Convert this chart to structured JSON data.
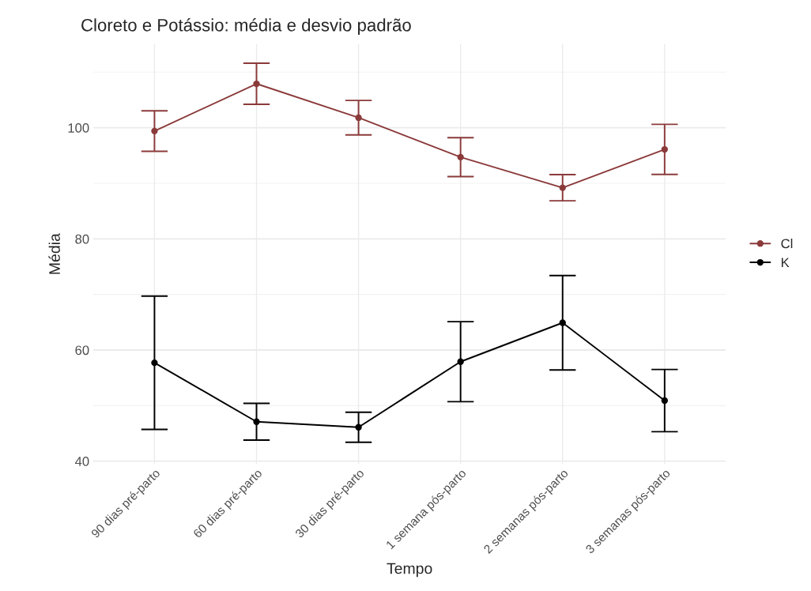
{
  "chart_data": {
    "type": "line",
    "title": "Cloreto e Potássio: média e desvio padrão",
    "xlabel": "Tempo",
    "ylabel": "Média",
    "categories": [
      "90 dias pré-parto",
      "60 dias pré-parto",
      "30 dias pré-parto",
      "1 semana pós-parto",
      "2 semanas pós-parto",
      "3 semanas pós-parto"
    ],
    "series": [
      {
        "name": "Cl",
        "color": "#8b3a3a",
        "values": [
          99.4,
          107.9,
          101.8,
          94.7,
          89.2,
          96.1
        ],
        "errors": [
          3.65,
          3.7,
          3.1,
          3.5,
          2.35,
          4.5
        ]
      },
      {
        "name": "K",
        "color": "#000000",
        "values": [
          57.7,
          47.1,
          46.1,
          57.9,
          64.9,
          50.9
        ],
        "errors": [
          12,
          3.3,
          2.7,
          7.2,
          8.5,
          5.6
        ]
      }
    ],
    "ylim": [
      39.5,
      115
    ],
    "yticks": [
      40,
      60,
      80,
      100
    ],
    "grid": true,
    "legend": "right",
    "marker": "circle",
    "line_style": "solid"
  }
}
